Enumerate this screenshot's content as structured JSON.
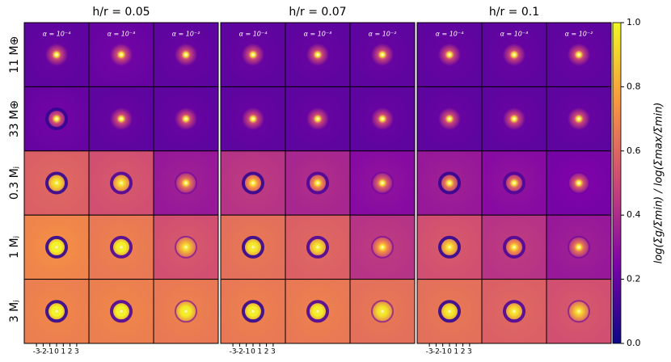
{
  "panels": [
    {
      "title": "h/r = 0.05",
      "columns": [
        "α = 10⁻⁴",
        "α = 10⁻³",
        "α = 10⁻²"
      ]
    },
    {
      "title": "h/r = 0.07",
      "columns": [
        "α = 10⁻⁴",
        "α = 10⁻³",
        "α = 10⁻²"
      ]
    },
    {
      "title": "h/r = 0.1",
      "columns": [
        "α = 10⁻⁴",
        "α = 10⁻³",
        "α = 10⁻²"
      ]
    }
  ],
  "rows": [
    "11 M⊕",
    "33 M⊕",
    "0.3 Mⱼ",
    "1 Mⱼ",
    "3 Mⱼ"
  ],
  "x_ticks": [
    -3,
    -2,
    -1,
    0,
    1,
    2,
    3
  ],
  "colorbar": {
    "label": "log(Σg/Σmin) / log(Σmax/Σmin)",
    "ylim": [
      0,
      1
    ],
    "yticks": [
      {
        "value": 0,
        "label": "0.0"
      },
      0.2,
      0.4,
      0.6,
      0.8,
      {
        "value": 1,
        "label": "1.0"
      }
    ]
  }
}
